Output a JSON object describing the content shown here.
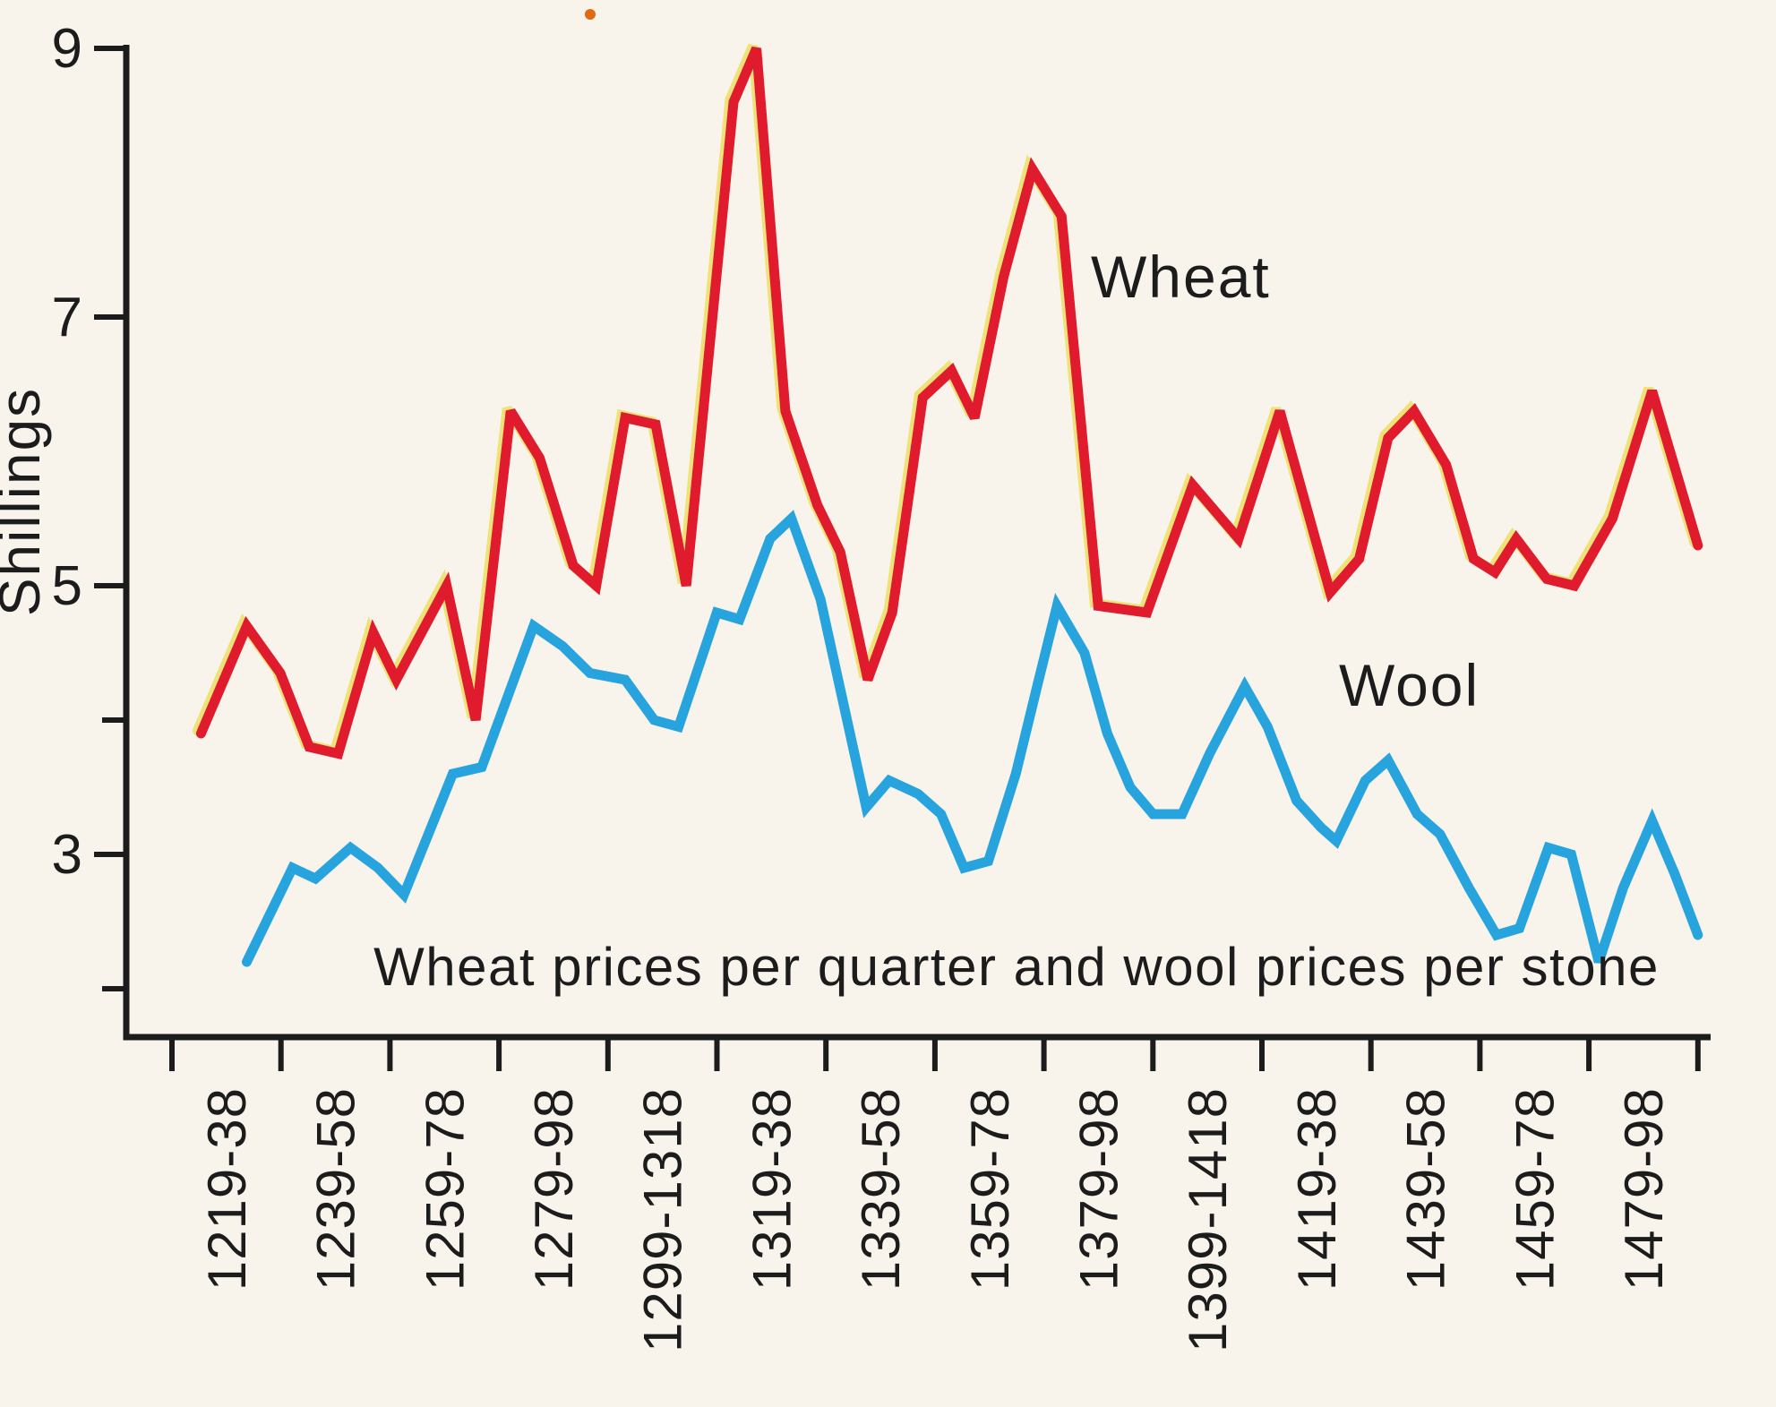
{
  "page": {
    "background_color": "#f8f4ec"
  },
  "chart_data": {
    "type": "line",
    "title": "Wheat prices per quarter and wool prices per stone",
    "ylabel": "Shillings",
    "x_tick_labels": [
      "1219-38",
      "1239-58",
      "1259-78",
      "1279-98",
      "1299-1318",
      "1319-38",
      "1339-58",
      "1359-78",
      "1379-98",
      "1399-1418",
      "1419-38",
      "1439-58",
      "1459-78",
      "1479-98"
    ],
    "y_tick_labels": [
      "3",
      "5",
      "7",
      "9"
    ],
    "y_major_ticks": [
      3,
      5,
      7,
      9
    ],
    "y_minor_ticks": [
      2,
      4
    ],
    "ylim": [
      1.6,
      9.0
    ],
    "grid": false,
    "legend_position": "inline-annotations",
    "x_encoding": "fraction along x-axis; 0 = left tick (start of 1219-38), 1 = right tick (end of 1479-98)",
    "colors": {
      "wheat": "#df1b2d",
      "wool": "#27a3de",
      "axis": "#1c1c1c",
      "misprint_yellow": "#e8cf00",
      "speck": "#e06a10"
    },
    "series": [
      {
        "name": "Wheat",
        "unit": "shillings per quarter",
        "color": "#df1b2d",
        "points": [
          [
            0.019,
            3.9
          ],
          [
            0.049,
            4.7
          ],
          [
            0.071,
            4.35
          ],
          [
            0.09,
            3.8
          ],
          [
            0.109,
            3.75
          ],
          [
            0.132,
            4.65
          ],
          [
            0.147,
            4.3
          ],
          [
            0.18,
            5.0
          ],
          [
            0.199,
            4.0
          ],
          [
            0.222,
            6.3
          ],
          [
            0.241,
            5.95
          ],
          [
            0.263,
            5.15
          ],
          [
            0.278,
            5.0
          ],
          [
            0.297,
            6.25
          ],
          [
            0.317,
            6.2
          ],
          [
            0.337,
            5.0
          ],
          [
            0.368,
            8.6
          ],
          [
            0.383,
            9.0
          ],
          [
            0.402,
            6.3
          ],
          [
            0.423,
            5.6
          ],
          [
            0.438,
            5.25
          ],
          [
            0.456,
            4.3
          ],
          [
            0.472,
            4.8
          ],
          [
            0.492,
            6.4
          ],
          [
            0.511,
            6.6
          ],
          [
            0.526,
            6.25
          ],
          [
            0.545,
            7.3
          ],
          [
            0.564,
            8.1
          ],
          [
            0.583,
            7.75
          ],
          [
            0.607,
            4.85
          ],
          [
            0.639,
            4.8
          ],
          [
            0.669,
            5.75
          ],
          [
            0.699,
            5.35
          ],
          [
            0.726,
            6.3
          ],
          [
            0.759,
            4.95
          ],
          [
            0.778,
            5.2
          ],
          [
            0.797,
            6.1
          ],
          [
            0.814,
            6.3
          ],
          [
            0.835,
            5.9
          ],
          [
            0.853,
            5.2
          ],
          [
            0.867,
            5.1
          ],
          [
            0.881,
            5.35
          ],
          [
            0.901,
            5.05
          ],
          [
            0.919,
            5.0
          ],
          [
            0.944,
            5.5
          ],
          [
            0.97,
            6.45
          ],
          [
            1.0,
            5.3
          ]
        ]
      },
      {
        "name": "Wool",
        "unit": "shillings per stone",
        "color": "#27a3de",
        "points": [
          [
            0.049,
            2.2
          ],
          [
            0.079,
            2.9
          ],
          [
            0.094,
            2.82
          ],
          [
            0.117,
            3.05
          ],
          [
            0.135,
            2.9
          ],
          [
            0.152,
            2.7
          ],
          [
            0.184,
            3.6
          ],
          [
            0.203,
            3.65
          ],
          [
            0.237,
            4.7
          ],
          [
            0.256,
            4.55
          ],
          [
            0.274,
            4.35
          ],
          [
            0.297,
            4.3
          ],
          [
            0.316,
            4.0
          ],
          [
            0.332,
            3.95
          ],
          [
            0.357,
            4.8
          ],
          [
            0.372,
            4.75
          ],
          [
            0.392,
            5.35
          ],
          [
            0.406,
            5.5
          ],
          [
            0.425,
            4.9
          ],
          [
            0.455,
            3.35
          ],
          [
            0.47,
            3.55
          ],
          [
            0.489,
            3.45
          ],
          [
            0.504,
            3.3
          ],
          [
            0.519,
            2.9
          ],
          [
            0.535,
            2.95
          ],
          [
            0.553,
            3.6
          ],
          [
            0.568,
            4.3
          ],
          [
            0.58,
            4.85
          ],
          [
            0.598,
            4.5
          ],
          [
            0.613,
            3.9
          ],
          [
            0.628,
            3.5
          ],
          [
            0.643,
            3.3
          ],
          [
            0.662,
            3.3
          ],
          [
            0.68,
            3.75
          ],
          [
            0.703,
            4.25
          ],
          [
            0.718,
            3.95
          ],
          [
            0.737,
            3.4
          ],
          [
            0.753,
            3.2
          ],
          [
            0.763,
            3.1
          ],
          [
            0.782,
            3.55
          ],
          [
            0.797,
            3.7
          ],
          [
            0.816,
            3.3
          ],
          [
            0.831,
            3.15
          ],
          [
            0.85,
            2.75
          ],
          [
            0.868,
            2.4
          ],
          [
            0.883,
            2.45
          ],
          [
            0.902,
            3.05
          ],
          [
            0.917,
            3.0
          ],
          [
            0.935,
            2.2
          ],
          [
            0.951,
            2.75
          ],
          [
            0.97,
            3.25
          ],
          [
            0.985,
            2.85
          ],
          [
            1.0,
            2.4
          ]
        ]
      }
    ]
  }
}
